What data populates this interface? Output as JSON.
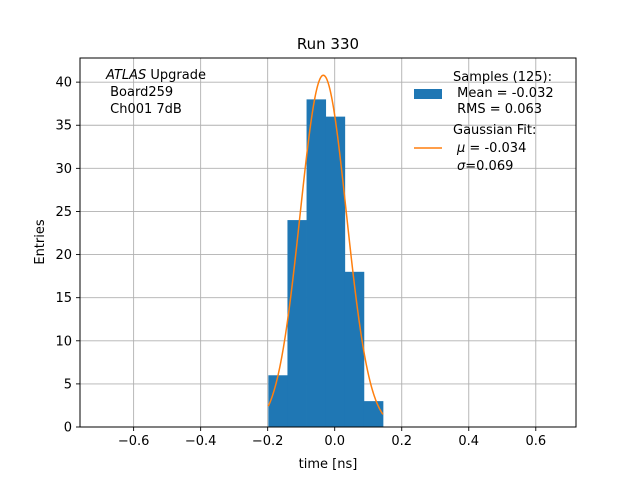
{
  "chart_data": {
    "type": "bar",
    "title": "Run 330",
    "xlabel": "time [ns]",
    "ylabel": "Entries",
    "xlim": [
      -0.76,
      0.72
    ],
    "ylim": [
      0,
      42.8
    ],
    "grid": true,
    "xticks": [
      -0.6,
      -0.4,
      -0.2,
      0.0,
      0.2,
      0.4,
      0.6
    ],
    "xtick_labels": [
      "−0.6",
      "−0.4",
      "−0.2",
      "0.0",
      "0.2",
      "0.4",
      "0.6"
    ],
    "yticks": [
      0,
      5,
      10,
      15,
      20,
      25,
      30,
      35,
      40
    ],
    "ytick_labels": [
      "0",
      "5",
      "10",
      "15",
      "20",
      "25",
      "30",
      "35",
      "40"
    ],
    "histogram": {
      "name": "Samples (125):",
      "color": "#1f77b4",
      "bin_edges": [
        -0.198,
        -0.141,
        -0.084,
        -0.027,
        0.03,
        0.087,
        0.144
      ],
      "counts": [
        6,
        24,
        38,
        36,
        18,
        3
      ]
    },
    "fit": {
      "name": "Gaussian Fit:",
      "color": "#ff7f0e",
      "amplitude": 40.8,
      "mu": -0.034,
      "sigma": 0.069,
      "x_range": [
        -0.198,
        0.144
      ]
    },
    "legend": {
      "position": "top-right",
      "samples_title": "Samples (125):",
      "samples_mean": " Mean = -0.032",
      "samples_rms": " RMS = 0.063",
      "fit_title": "Gaussian Fit:",
      "fit_mu_symbol": "μ",
      "fit_mu_value": " = -0.034",
      "fit_sigma_symbol": "σ",
      "fit_sigma_value": "=0.069"
    },
    "annotation": {
      "position": "top-left",
      "experiment": "ATLAS",
      "experiment_suffix": " Upgrade",
      "board": " Board259",
      "channel": " Ch001 7dB"
    }
  }
}
